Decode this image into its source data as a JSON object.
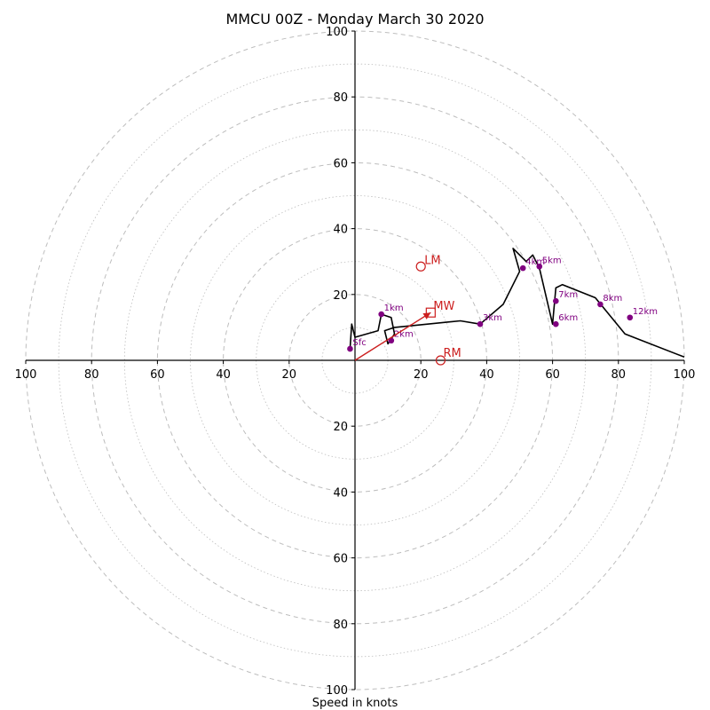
{
  "chart_data": {
    "type": "hodograph",
    "title": "MMCU 00Z - Monday March 30 2020",
    "xlabel": "Speed in knots",
    "axis_range": [
      -100,
      100
    ],
    "ring_step_major": 20,
    "ring_step_minor": 10,
    "ticks": {
      "x_left": [
        "100",
        "80",
        "60",
        "40",
        "20"
      ],
      "x_right": [
        "20",
        "40",
        "60",
        "80",
        "100"
      ],
      "y_up": [
        "20",
        "40",
        "60",
        "80",
        "100"
      ],
      "y_down": [
        "20",
        "40",
        "60",
        "80",
        "100"
      ]
    },
    "trace": [
      [
        -1.5,
        3.5
      ],
      [
        -1,
        11
      ],
      [
        0,
        7
      ],
      [
        7,
        9
      ],
      [
        8,
        14
      ],
      [
        11,
        13
      ],
      [
        12,
        8
      ],
      [
        10,
        5
      ],
      [
        9,
        9
      ],
      [
        12,
        10
      ],
      [
        32,
        12
      ],
      [
        38,
        11
      ],
      [
        45,
        17
      ],
      [
        50,
        27
      ],
      [
        48,
        34
      ],
      [
        52,
        30
      ],
      [
        54,
        32
      ],
      [
        56,
        28
      ],
      [
        60,
        11
      ],
      [
        61,
        22
      ],
      [
        63,
        23
      ],
      [
        73,
        19
      ],
      [
        82,
        8
      ],
      [
        100,
        1
      ]
    ],
    "height_markers": [
      {
        "label": "Sfc",
        "u": -1.5,
        "v": 3.5
      },
      {
        "label": "1km",
        "u": 8,
        "v": 14
      },
      {
        "label": "2km",
        "u": 11,
        "v": 6
      },
      {
        "label": "3km",
        "u": 38,
        "v": 11
      },
      {
        "label": "4km",
        "u": 51,
        "v": 28
      },
      {
        "label": "5km",
        "u": 56,
        "v": 28.5
      },
      {
        "label": "6km",
        "u": 61,
        "v": 11
      },
      {
        "label": "7km",
        "u": 61,
        "v": 18
      },
      {
        "label": "8km",
        "u": 74.5,
        "v": 17
      },
      {
        "label": "12km",
        "u": 83.5,
        "v": 13
      }
    ],
    "storm_motion": {
      "LM": {
        "u": 20,
        "v": 28.5
      },
      "MW": {
        "u": 23,
        "v": 14.5
      },
      "RM": {
        "u": 26,
        "v": 0
      }
    },
    "colors": {
      "trace": "#000000",
      "markers": "#800080",
      "motion": "#cc1f1f",
      "rings": "#bdbdbd"
    }
  }
}
